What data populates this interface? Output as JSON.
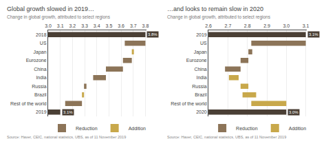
{
  "chart_data": [
    {
      "type": "bar",
      "orientation": "horizontal",
      "title": "Global growth slowed in 2019…",
      "subtitle": "Change in global growth, attributed to select regions",
      "source": "Source: Haver, CEIC, national statistics, UBS, as of 11 November 2019",
      "categories": [
        "2018",
        "US",
        "Japan",
        "Eurozone",
        "China",
        "India",
        "Russia",
        "Brazil",
        "Rest of the world",
        "2019"
      ],
      "series": [
        {
          "color": "#4a3f35",
          "values": [
            3.8,
            null,
            null,
            null,
            null,
            null,
            null,
            null,
            null,
            3.1
          ],
          "base": [
            3.0,
            null,
            null,
            null,
            null,
            null,
            null,
            null,
            null,
            3.0
          ],
          "value_labels": [
            "3.8%",
            null,
            null,
            null,
            null,
            null,
            null,
            null,
            null,
            "3.1%"
          ]
        },
        {
          "name": "Reduction",
          "color": "#8c7458",
          "values": [
            null,
            3.8,
            null,
            3.688,
            3.615,
            3.475,
            3.315,
            null,
            3.278,
            null
          ],
          "base": [
            null,
            3.63,
            null,
            3.615,
            3.475,
            3.37,
            3.295,
            null,
            3.14,
            null
          ]
        },
        {
          "name": "Addition",
          "color": "#c8a84b",
          "values": [
            null,
            null,
            3.705,
            null,
            null,
            null,
            null,
            3.295,
            null,
            null
          ],
          "base": [
            null,
            null,
            3.688,
            null,
            null,
            null,
            null,
            3.278,
            null,
            null
          ]
        }
      ],
      "xlim": [
        3.0,
        3.808
      ],
      "xticks": [
        {
          "value": 3.0,
          "label": "3.0"
        },
        3.1,
        3.2,
        3.3,
        3.4,
        3.5,
        3.6,
        3.7,
        3.8
      ],
      "grid": true,
      "legend": "lower left",
      "data_labels": true
    },
    {
      "type": "bar",
      "orientation": "horizontal",
      "title": "…and looks to remain slow in 2020",
      "subtitle": "Change in global growth, attributed to select regions",
      "source": "Source: Haver, CEIC, national statistics, UBS, as of 11 November 2019",
      "categories": [
        "2019",
        "US",
        "Japan",
        "Eurozone",
        "China",
        "India",
        "Russia",
        "Brazil",
        "Rest of the world",
        "2020"
      ],
      "series": [
        {
          "color": "#4a3f35",
          "values": [
            3.1,
            null,
            null,
            null,
            null,
            null,
            null,
            null,
            null,
            3.0
          ],
          "base": [
            2.6,
            null,
            null,
            null,
            null,
            null,
            null,
            null,
            null,
            2.6
          ],
          "value_labels": [
            "3.1%",
            null,
            null,
            null,
            null,
            null,
            null,
            null,
            null,
            "3.0%"
          ]
        },
        {
          "name": "Reduction",
          "color": "#8c7458",
          "values": [
            null,
            3.1,
            2.825,
            2.805,
            2.765,
            null,
            null,
            null,
            null,
            null
          ],
          "base": [
            null,
            2.82,
            2.805,
            2.765,
            2.685,
            null,
            null,
            null,
            null,
            null
          ]
        },
        {
          "name": "Addition",
          "color": "#c8a84b",
          "values": [
            null,
            null,
            null,
            null,
            null,
            2.755,
            2.805,
            2.845,
            3.0,
            null
          ],
          "base": [
            null,
            null,
            null,
            null,
            null,
            2.705,
            2.765,
            2.775,
            2.82,
            null
          ]
        }
      ],
      "xlim": [
        2.6,
        3.105
      ],
      "xticks": [
        2.6,
        2.7,
        2.8,
        2.9,
        {
          "value": 3.0,
          "label": "3.0"
        },
        3.1
      ],
      "grid": true,
      "legend": "lower left",
      "data_labels": true
    }
  ]
}
